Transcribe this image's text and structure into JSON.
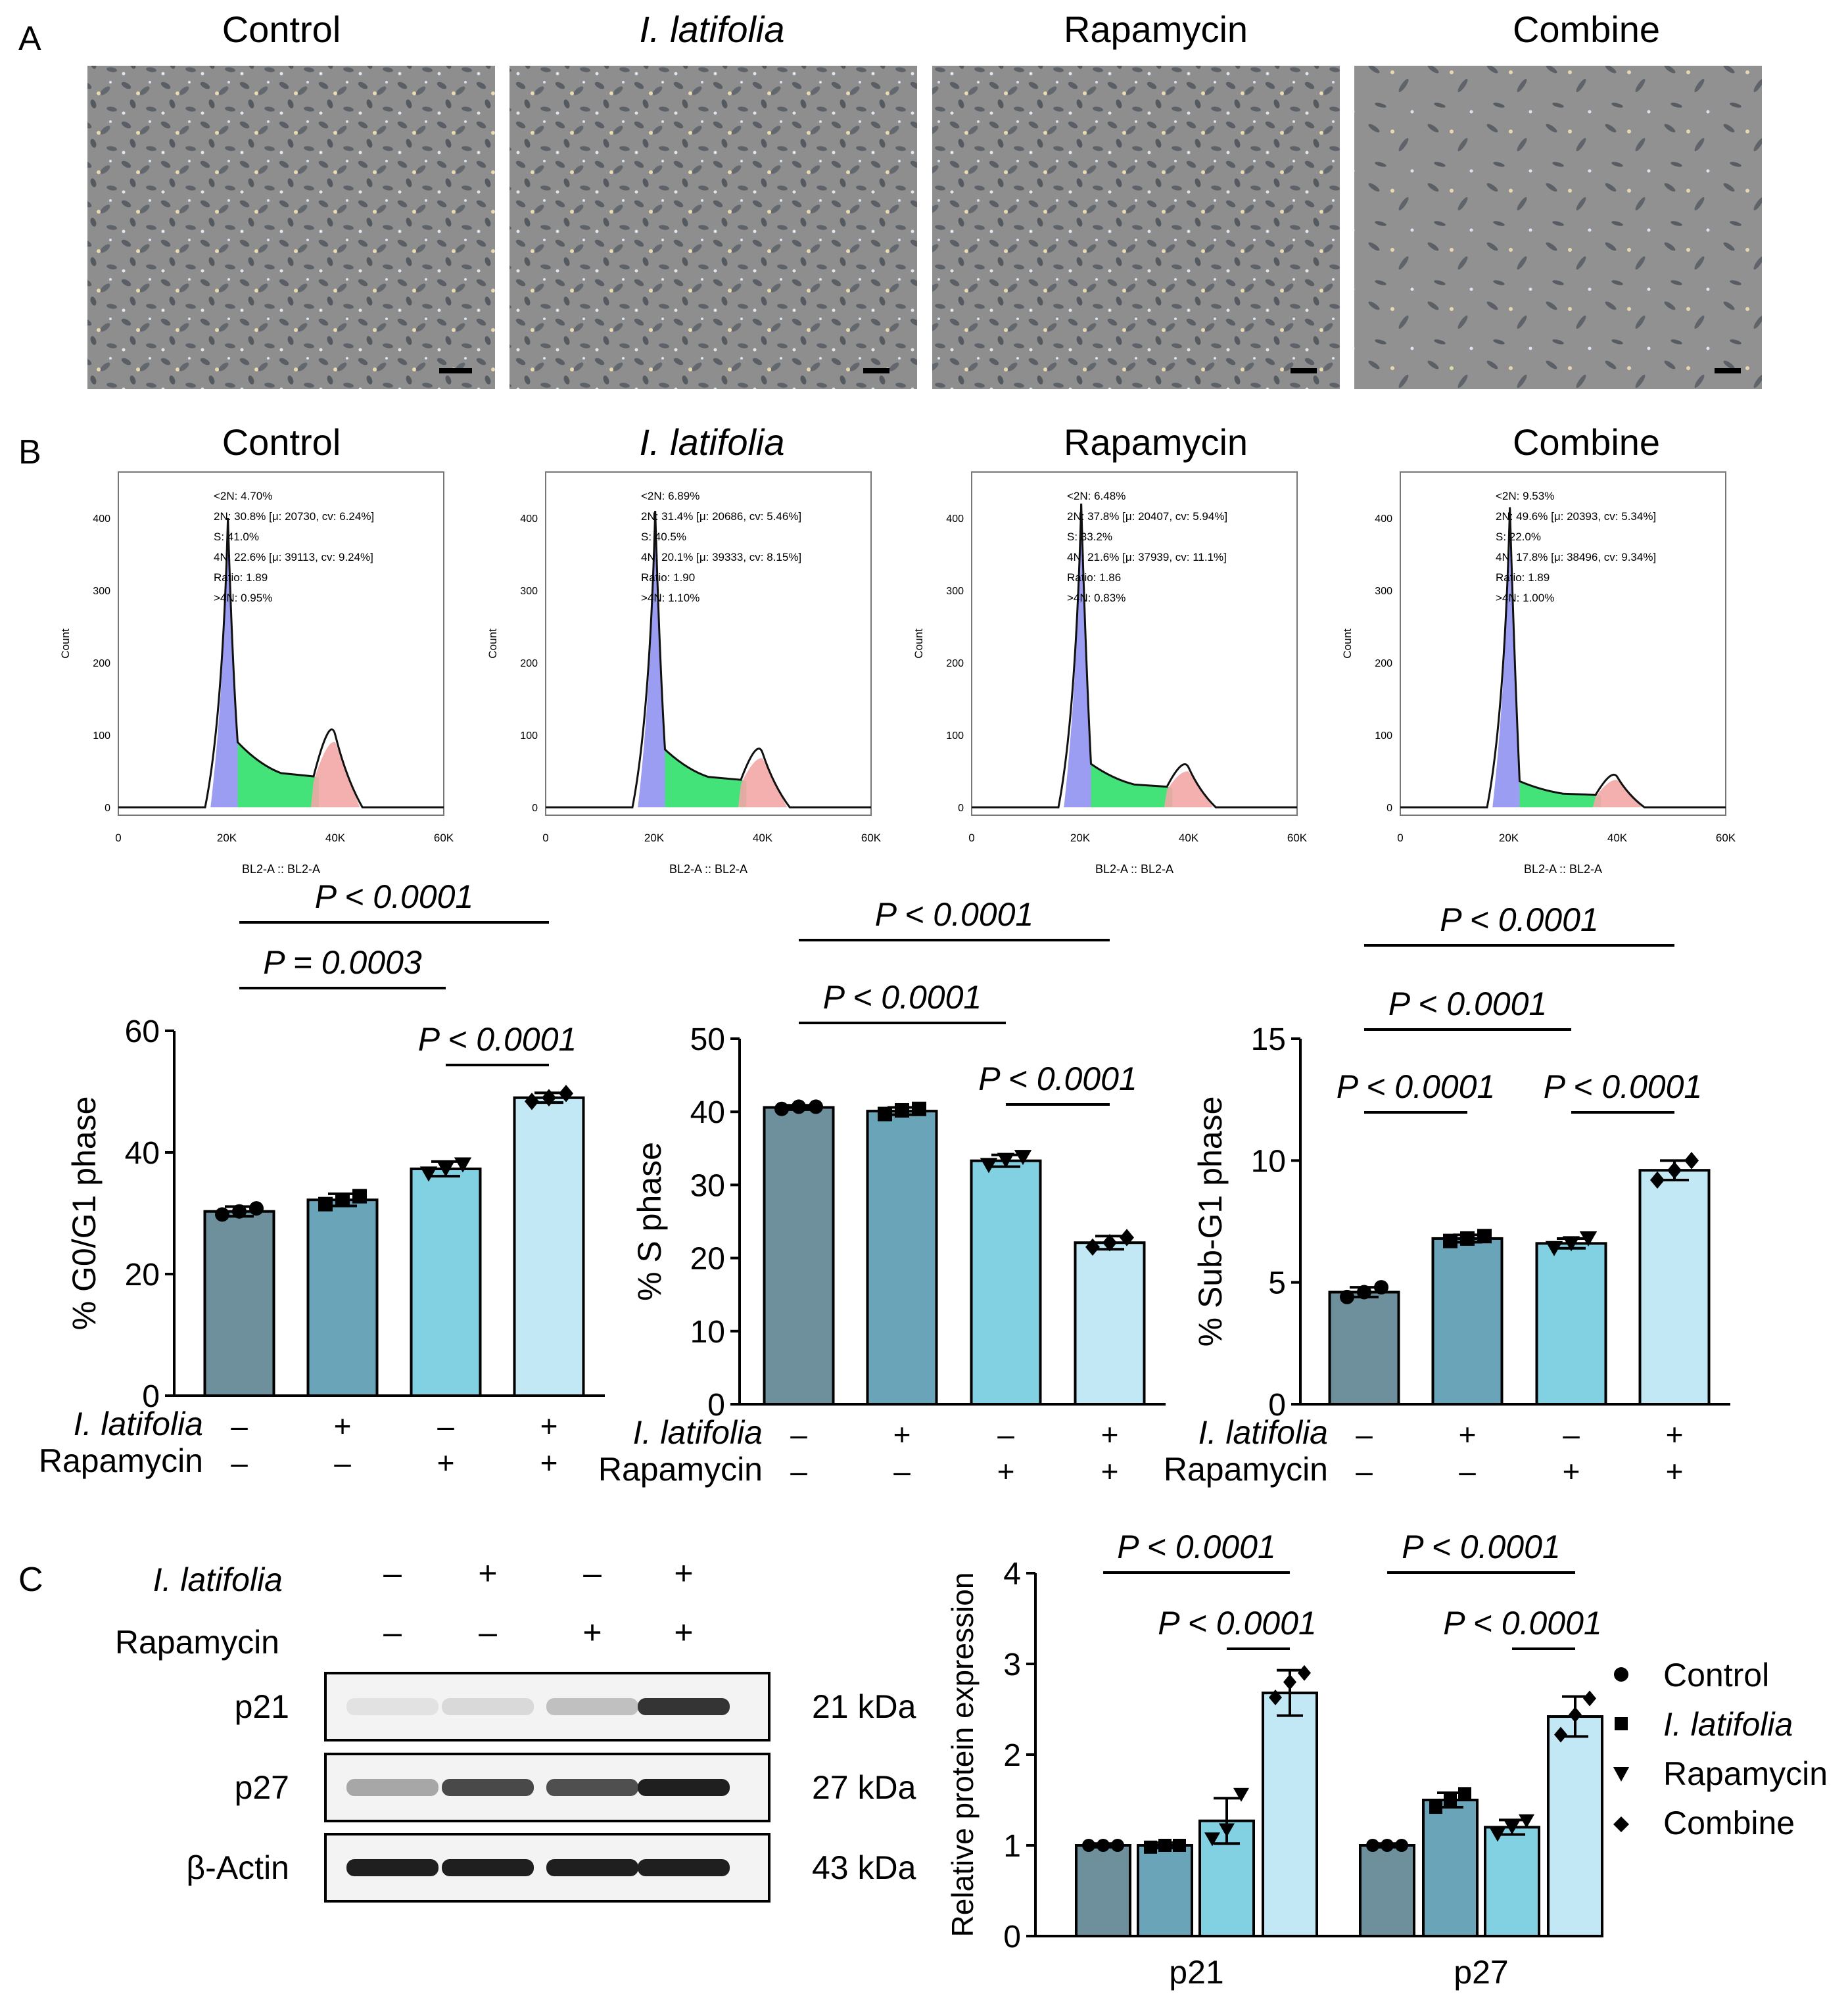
{
  "panels": {
    "a": "A",
    "b": "B",
    "c": "C"
  },
  "colors": {
    "control": "#6e909d",
    "latifolia": "#6aa4b9",
    "rapamycin": "#82d1e2",
    "combine": "#c2e8f5",
    "g1_peak": "#8a8cf0",
    "s_phase": "#2fe06a",
    "g2_peak": "#f3a6a6",
    "micro_bg": "#8f8f8f"
  },
  "groups": [
    {
      "title": "Control",
      "italic": false
    },
    {
      "title": "I. latifolia",
      "italic": true
    },
    {
      "title": "Rapamycin",
      "italic": false
    },
    {
      "title": "Combine",
      "italic": true
    }
  ],
  "flow": {
    "ylabel": "Count",
    "xlabel": "BL2-A :: BL2-A",
    "yticks": [
      "0",
      "100",
      "200",
      "300",
      "400"
    ],
    "xticks": [
      "0",
      "20K",
      "40K",
      "60K"
    ],
    "profiles": [
      {
        "peak1": 400,
        "g2": 100,
        "s_level": 45,
        "stats": [
          "<2N: 4.70%",
          "2N: 30.8%  [μ: 20730, cv: 6.24%]",
          "S: 41.0%",
          "4N: 22.6%  [μ: 39113, cv: 9.24%]",
          "Ratio: 1.89",
          ">4N: 0.95%"
        ]
      },
      {
        "peak1": 410,
        "g2": 75,
        "s_level": 40,
        "stats": [
          "<2N: 6.89%",
          "2N: 31.4%  [μ: 20686, cv: 5.46%]",
          "S: 40.5%",
          "4N: 20.1%  [μ: 39333, cv: 8.15%]",
          "Ratio: 1.90",
          ">4N: 1.10%"
        ]
      },
      {
        "peak1": 420,
        "g2": 55,
        "s_level": 30,
        "stats": [
          "<2N: 6.48%",
          "2N: 37.8%  [μ: 20407, cv: 5.94%]",
          "S: 33.2%",
          "4N: 21.6%  [μ: 37939, cv: 11.1%]",
          "Ratio: 1.86",
          ">4N: 0.83%"
        ]
      },
      {
        "peak1": 415,
        "g2": 42,
        "s_level": 18,
        "stats": [
          "<2N: 9.53%",
          "2N: 49.6%  [μ: 20393, cv: 5.34%]",
          "S: 22.0%",
          "4N: 17.8%  [μ: 38496, cv: 9.34%]",
          "Ratio: 1.89",
          ">4N: 1.00%"
        ]
      }
    ]
  },
  "treatment_labels": {
    "latifolia": "I. latifolia",
    "rapamycin": "Rapamycin",
    "latifolia_signs": [
      "–",
      "+",
      "–",
      "+"
    ],
    "rapamycin_signs": [
      "–",
      "–",
      "+",
      "+"
    ]
  },
  "chart_data": [
    {
      "type": "bar",
      "ylabel": "% G0/G1 phase",
      "ylim": [
        0,
        60
      ],
      "yticks": [
        "0",
        "20",
        "40",
        "60"
      ],
      "categories": [
        "Control",
        "I. latifolia",
        "Rapamycin",
        "Combine"
      ],
      "values": [
        30.3,
        32.2,
        37.3,
        49.0
      ],
      "errors": [
        0.8,
        1.0,
        1.2,
        0.8
      ],
      "points": [
        [
          29.8,
          30.3,
          30.8
        ],
        [
          31.5,
          32.2,
          32.8
        ],
        [
          36.5,
          37.3,
          38.0
        ],
        [
          48.4,
          49.0,
          49.7
        ]
      ],
      "comparisons": [
        {
          "label": "P < 0.0001",
          "from": 0,
          "to": 3
        },
        {
          "label": "P = 0.0003",
          "from": 0,
          "to": 2
        },
        {
          "label": "P < 0.0001",
          "from": 2,
          "to": 3
        }
      ]
    },
    {
      "type": "bar",
      "ylabel": "% S phase",
      "ylim": [
        0,
        50
      ],
      "yticks": [
        "0",
        "10",
        "20",
        "30",
        "40",
        "50"
      ],
      "categories": [
        "Control",
        "I. latifolia",
        "Rapamycin",
        "Combine"
      ],
      "values": [
        40.6,
        40.1,
        33.3,
        22.1
      ],
      "errors": [
        0.3,
        0.5,
        0.8,
        0.9
      ],
      "points": [
        [
          40.4,
          40.7,
          40.7
        ],
        [
          39.7,
          40.2,
          40.4
        ],
        [
          32.7,
          33.4,
          33.8
        ],
        [
          21.5,
          22.1,
          22.8
        ]
      ],
      "comparisons": [
        {
          "label": "P < 0.0001",
          "from": 0,
          "to": 3
        },
        {
          "label": "P < 0.0001",
          "from": 0,
          "to": 2
        },
        {
          "label": "P < 0.0001",
          "from": 2,
          "to": 3
        }
      ]
    },
    {
      "type": "bar",
      "ylabel": "% Sub-G1 phase",
      "ylim": [
        0,
        15
      ],
      "yticks": [
        "0",
        "5",
        "10",
        "15"
      ],
      "categories": [
        "Control",
        "I. latifolia",
        "Rapamycin",
        "Combine"
      ],
      "values": [
        4.6,
        6.8,
        6.6,
        9.6
      ],
      "errors": [
        0.2,
        0.15,
        0.2,
        0.4
      ],
      "points": [
        [
          4.4,
          4.6,
          4.8
        ],
        [
          6.7,
          6.8,
          6.9
        ],
        [
          6.4,
          6.6,
          6.8
        ],
        [
          9.2,
          9.6,
          10.0
        ]
      ],
      "comparisons": [
        {
          "label": "P < 0.0001",
          "from": 0,
          "to": 3
        },
        {
          "label": "P < 0.0001",
          "from": 0,
          "to": 2
        },
        {
          "label": "P < 0.0001",
          "from": 0,
          "to": 1
        },
        {
          "label": "P < 0.0001",
          "from": 2,
          "to": 3
        }
      ]
    },
    {
      "type": "bar",
      "ylabel": "Relative protein expression",
      "ylim": [
        0,
        4
      ],
      "yticks": [
        "0",
        "1",
        "2",
        "3",
        "4"
      ],
      "categories": [
        "p21",
        "p27"
      ],
      "series": [
        {
          "name": "Control",
          "values": [
            1.0,
            1.0
          ],
          "errors": [
            0.02,
            0.02
          ],
          "points": [
            [
              1.0,
              1.0,
              1.0
            ],
            [
              1.0,
              1.0,
              1.0
            ]
          ],
          "marker": "circle"
        },
        {
          "name": "I. latifolia",
          "values": [
            1.0,
            1.5
          ],
          "errors": [
            0.03,
            0.08
          ],
          "points": [
            [
              0.98,
              1.0,
              1.0
            ],
            [
              1.42,
              1.5,
              1.57
            ]
          ],
          "marker": "square"
        },
        {
          "name": "Rapamycin",
          "values": [
            1.27,
            1.2
          ],
          "errors": [
            0.25,
            0.08
          ],
          "points": [
            [
              1.07,
              1.17,
              1.56
            ],
            [
              1.12,
              1.2,
              1.27
            ]
          ],
          "marker": "triangle"
        },
        {
          "name": "Combine",
          "values": [
            2.68,
            2.42
          ],
          "errors": [
            0.25,
            0.22
          ],
          "points": [
            [
              2.63,
              2.8,
              2.9
            ],
            [
              2.22,
              2.44,
              2.62
            ]
          ],
          "marker": "diamond"
        }
      ],
      "comparisons": [
        {
          "label": "P < 0.0001",
          "group": 0,
          "from": 0,
          "to": 3
        },
        {
          "label": "P < 0.0001",
          "group": 0,
          "from": 2,
          "to": 3
        },
        {
          "label": "P < 0.0001",
          "group": 1,
          "from": 0,
          "to": 3
        },
        {
          "label": "P < 0.0001",
          "group": 1,
          "from": 2,
          "to": 3
        }
      ]
    }
  ],
  "western": {
    "proteins": [
      {
        "name": "p21",
        "size": "21 kDa",
        "intensity": [
          0.02,
          0.06,
          0.18,
          0.85
        ]
      },
      {
        "name": "p27",
        "size": "27 kDa",
        "intensity": [
          0.3,
          0.75,
          0.72,
          0.95
        ]
      },
      {
        "name": "β-Actin",
        "size": "43 kDa",
        "intensity": [
          0.95,
          0.95,
          0.95,
          0.95
        ]
      }
    ]
  }
}
